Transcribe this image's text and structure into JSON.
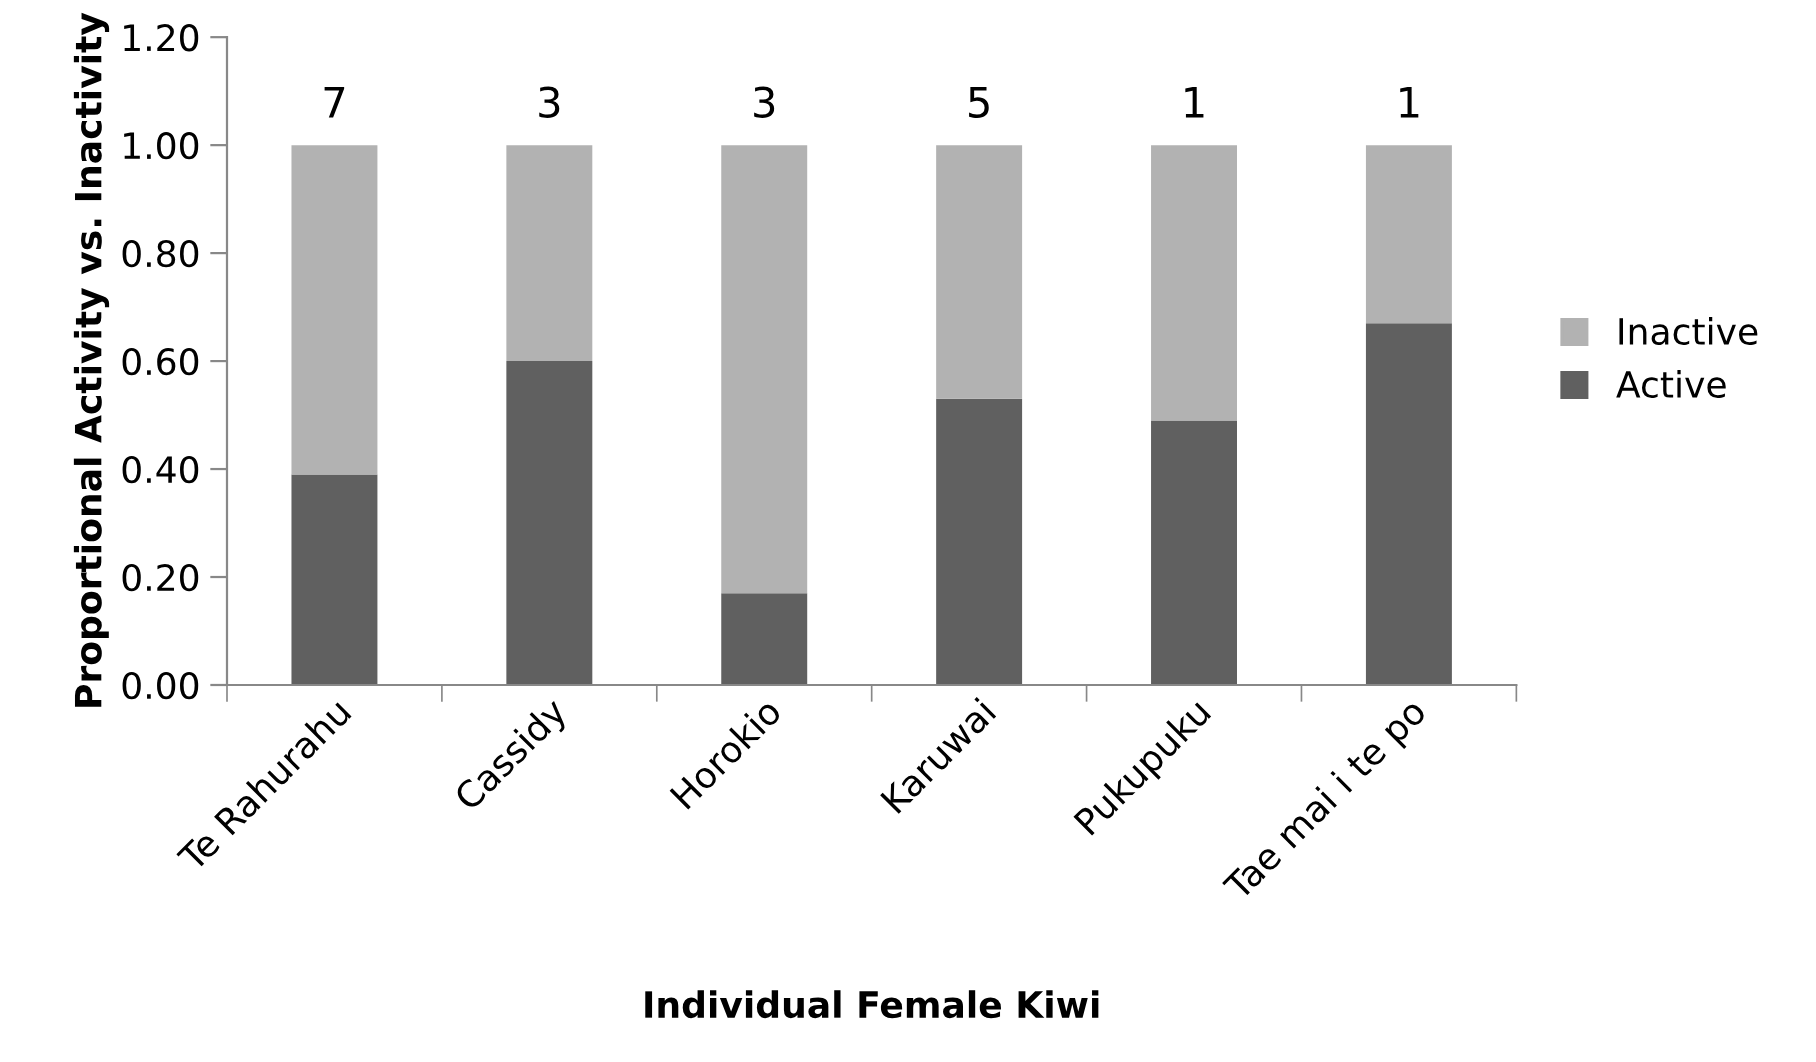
{
  "chart_data": {
    "type": "bar",
    "stacked": true,
    "xlabel": "Individual Female Kiwi",
    "ylabel": "Proportional Activity vs. Inactivity",
    "categories": [
      "Te Rahurahu",
      "Cassidy",
      "Horokio",
      "Karuwai",
      "Pukupuku",
      "Tae mai i te po"
    ],
    "series": [
      {
        "name": "Active",
        "color": "#606060",
        "values": [
          0.39,
          0.6,
          0.17,
          0.53,
          0.49,
          0.67
        ]
      },
      {
        "name": "Inactive",
        "color": "#b2b2b2",
        "values": [
          0.61,
          0.4,
          0.83,
          0.47,
          0.51,
          0.33
        ]
      }
    ],
    "ylim": [
      0,
      1.2
    ],
    "yticks": [
      {
        "value": 0,
        "label": "0.00"
      },
      {
        "value": 0.2,
        "label": "0.20"
      },
      {
        "value": 0.4,
        "label": "0.40"
      },
      {
        "value": 0.6,
        "label": "0.60"
      },
      {
        "value": 0.8,
        "label": "0.80"
      },
      {
        "value": 1.0,
        "label": "1.00"
      },
      {
        "value": 1.2,
        "label": "1.20"
      }
    ],
    "annotations": [
      "7",
      "3",
      "3",
      "5",
      "1",
      "1"
    ],
    "grid": false,
    "legend": "right"
  }
}
